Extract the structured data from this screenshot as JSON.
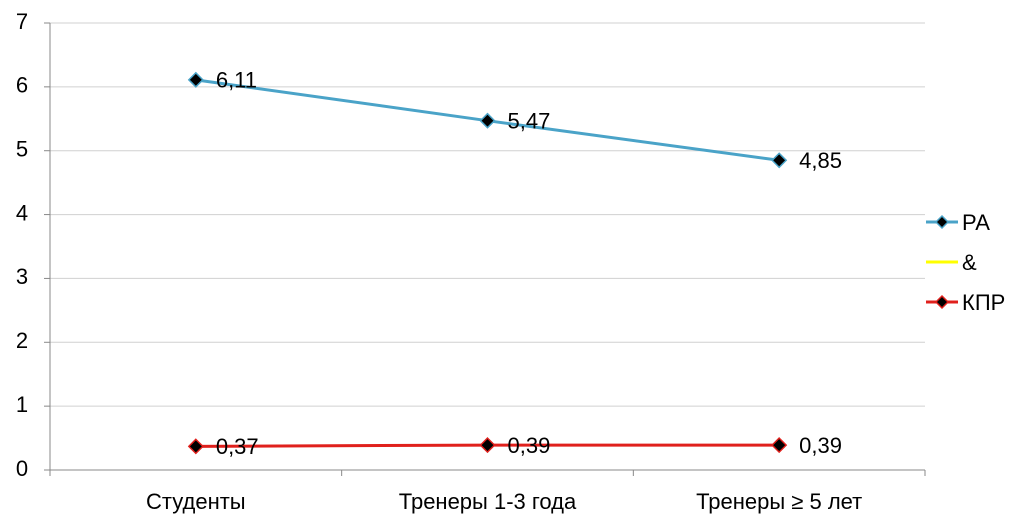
{
  "chart_data": {
    "type": "line",
    "categories": [
      "Студенты",
      "Тренеры 1-3 года",
      "Тренеры ≥ 5 лет"
    ],
    "series": [
      {
        "name": "РА",
        "color": "#4aa3c8",
        "marker": "diamond",
        "values": [
          6.11,
          5.47,
          4.85
        ],
        "value_labels": [
          "6,11",
          "5,47",
          "4,85"
        ]
      },
      {
        "name": "&",
        "color": "#ffff00",
        "values": [
          null,
          null,
          null
        ]
      },
      {
        "name": "КПР",
        "color": "#e0201c",
        "marker": "diamond",
        "values": [
          0.37,
          0.39,
          0.39
        ],
        "value_labels": [
          "0,37",
          "0,39",
          "0,39"
        ]
      }
    ],
    "ylim": [
      0,
      7
    ],
    "yticks": [
      0,
      1,
      2,
      3,
      4,
      5,
      6,
      7
    ],
    "grid": true,
    "legend": "right"
  }
}
